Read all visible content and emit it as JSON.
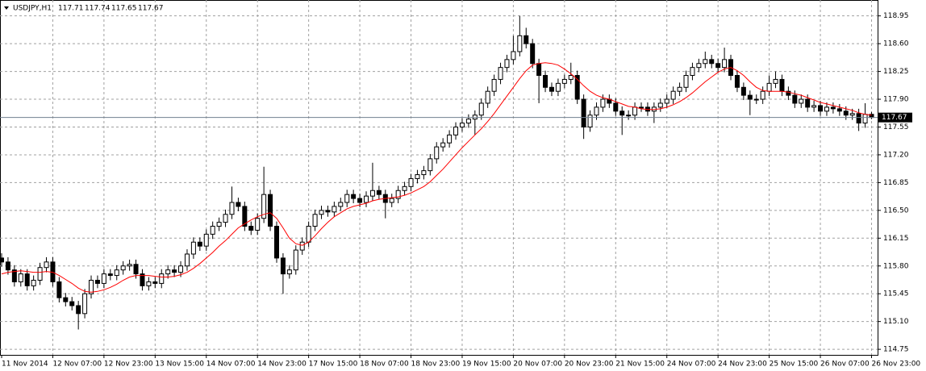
{
  "chart_data": {
    "type": "candlestick",
    "symbol": "USDJPY,H1",
    "categories": [
      "11 Nov 2014",
      null,
      null,
      null,
      null,
      null,
      null,
      null,
      "12 Nov 07:00",
      null,
      null,
      null,
      null,
      null,
      null,
      null,
      "12 Nov 23:00",
      null,
      null,
      null,
      null,
      null,
      null,
      null,
      "13 Nov 15:00",
      null,
      null,
      null,
      null,
      null,
      null,
      null,
      "14 Nov 07:00",
      null,
      null,
      null,
      null,
      null,
      null,
      null,
      "14 Nov 23:00",
      null,
      null,
      null,
      null,
      null,
      null,
      null,
      "17 Nov 15:00",
      null,
      null,
      null,
      null,
      null,
      null,
      null,
      "18 Nov 07:00",
      null,
      null,
      null,
      null,
      null,
      null,
      null,
      "18 Nov 23:00",
      null,
      null,
      null,
      null,
      null,
      null,
      null,
      "19 Nov 15:00",
      null,
      null,
      null,
      null,
      null,
      null,
      null,
      "20 Nov 07:00",
      null,
      null,
      null,
      null,
      null,
      null,
      null,
      "20 Nov 23:00",
      null,
      null,
      null,
      null,
      null,
      null,
      null,
      "21 Nov 15:00",
      null,
      null,
      null,
      null,
      null,
      null,
      null,
      "24 Nov 07:00",
      null,
      null,
      null,
      null,
      null,
      null,
      null,
      "24 Nov 23:00",
      null,
      null,
      null,
      null,
      null,
      null,
      null,
      "25 Nov 15:00",
      null,
      null,
      null,
      null,
      null,
      null,
      null,
      "26 Nov 07:00",
      null,
      null,
      null,
      null,
      null,
      null,
      null,
      "26 Nov 23:00"
    ],
    "open": [
      115.9,
      115.85,
      115.75,
      115.6,
      115.7,
      115.55,
      115.62,
      115.78,
      115.85,
      115.6,
      115.4,
      115.35,
      115.3,
      115.2,
      115.45,
      115.62,
      115.58,
      115.7,
      115.68,
      115.75,
      115.8,
      115.82,
      115.7,
      115.55,
      115.6,
      115.58,
      115.7,
      115.75,
      115.72,
      115.8,
      115.95,
      116.1,
      116.05,
      116.2,
      116.3,
      116.35,
      116.45,
      116.6,
      116.55,
      116.3,
      116.25,
      116.4,
      116.7,
      116.3,
      115.9,
      115.7,
      115.75,
      116.0,
      116.1,
      116.3,
      116.45,
      116.5,
      116.48,
      116.55,
      116.6,
      116.7,
      116.65,
      116.6,
      116.68,
      116.75,
      116.7,
      116.6,
      116.65,
      116.75,
      116.8,
      116.9,
      116.95,
      117.0,
      117.15,
      117.3,
      117.35,
      117.45,
      117.55,
      117.6,
      117.65,
      117.7,
      117.85,
      118.0,
      118.15,
      118.3,
      118.4,
      118.5,
      118.7,
      118.6,
      118.35,
      118.2,
      118.05,
      118.0,
      118.1,
      118.15,
      118.2,
      117.9,
      117.55,
      117.7,
      117.8,
      117.9,
      117.85,
      117.75,
      117.7,
      117.7,
      117.8,
      117.8,
      117.75,
      117.8,
      117.85,
      117.9,
      118.0,
      118.05,
      118.2,
      118.3,
      118.35,
      118.4,
      118.35,
      118.3,
      118.4,
      118.2,
      118.05,
      117.95,
      117.9,
      117.9,
      118.0,
      118.1,
      118.15,
      118.0,
      117.95,
      117.85,
      117.9,
      117.8,
      117.82,
      117.75,
      117.8,
      117.78,
      117.75,
      117.7,
      117.72,
      117.6,
      117.71
    ],
    "high": [
      115.96,
      115.91,
      115.81,
      115.76,
      115.76,
      115.68,
      115.84,
      115.91,
      115.91,
      115.66,
      115.46,
      115.41,
      115.36,
      115.51,
      115.68,
      115.68,
      115.76,
      115.76,
      115.81,
      115.86,
      115.88,
      115.88,
      115.76,
      115.66,
      115.66,
      115.76,
      115.81,
      115.81,
      115.86,
      116.01,
      116.16,
      116.16,
      116.26,
      116.36,
      116.41,
      116.51,
      116.8,
      116.66,
      116.61,
      116.36,
      116.46,
      117.05,
      116.76,
      116.36,
      115.96,
      115.81,
      116.06,
      116.16,
      116.36,
      116.51,
      116.56,
      116.56,
      116.61,
      116.66,
      116.76,
      116.76,
      116.71,
      116.74,
      117.1,
      116.81,
      116.76,
      116.71,
      116.81,
      116.86,
      116.96,
      117.01,
      117.06,
      117.21,
      117.36,
      117.41,
      117.51,
      117.61,
      117.66,
      117.71,
      117.76,
      117.91,
      118.06,
      118.21,
      118.36,
      118.46,
      118.7,
      118.95,
      118.8,
      118.66,
      118.41,
      118.26,
      118.11,
      118.16,
      118.21,
      118.36,
      118.26,
      117.96,
      117.76,
      117.86,
      117.96,
      117.96,
      117.91,
      117.81,
      117.76,
      117.86,
      117.86,
      117.86,
      117.86,
      117.91,
      117.96,
      118.06,
      118.11,
      118.26,
      118.36,
      118.41,
      118.5,
      118.46,
      118.41,
      118.55,
      118.46,
      118.26,
      118.11,
      118.01,
      117.96,
      118.06,
      118.2,
      118.25,
      118.21,
      118.06,
      118.01,
      117.96,
      117.96,
      117.88,
      117.88,
      117.86,
      117.86,
      117.84,
      117.81,
      117.78,
      117.78,
      117.85,
      117.74
    ],
    "low": [
      115.79,
      115.69,
      115.54,
      115.54,
      115.49,
      115.49,
      115.56,
      115.72,
      115.54,
      115.34,
      115.29,
      115.24,
      115.0,
      115.14,
      115.39,
      115.52,
      115.52,
      115.62,
      115.62,
      115.69,
      115.74,
      115.64,
      115.49,
      115.49,
      115.52,
      115.52,
      115.64,
      115.66,
      115.66,
      115.74,
      115.89,
      115.99,
      115.99,
      116.14,
      116.24,
      116.29,
      116.39,
      116.49,
      116.24,
      116.19,
      116.19,
      116.34,
      116.24,
      115.84,
      115.45,
      115.64,
      115.69,
      115.94,
      116.04,
      116.24,
      116.39,
      116.42,
      116.42,
      116.49,
      116.54,
      116.59,
      116.54,
      116.54,
      116.62,
      116.64,
      116.4,
      116.54,
      116.59,
      116.69,
      116.74,
      116.84,
      116.89,
      116.94,
      117.09,
      117.24,
      117.29,
      117.39,
      117.49,
      117.54,
      117.45,
      117.64,
      117.79,
      117.94,
      118.09,
      118.24,
      118.34,
      118.44,
      118.54,
      118.29,
      117.85,
      117.99,
      117.94,
      117.94,
      118.04,
      118.09,
      117.84,
      117.4,
      117.49,
      117.64,
      117.74,
      117.79,
      117.69,
      117.45,
      117.64,
      117.64,
      117.74,
      117.69,
      117.6,
      117.74,
      117.79,
      117.84,
      117.94,
      117.99,
      118.14,
      118.24,
      118.29,
      118.29,
      118.24,
      118.24,
      118.14,
      117.99,
      117.89,
      117.7,
      117.84,
      117.84,
      117.94,
      118.04,
      117.94,
      117.89,
      117.79,
      117.79,
      117.74,
      117.74,
      117.69,
      117.69,
      117.72,
      117.69,
      117.64,
      117.64,
      117.5,
      117.54,
      117.65
    ],
    "close": [
      115.85,
      115.75,
      115.6,
      115.7,
      115.55,
      115.62,
      115.78,
      115.85,
      115.6,
      115.4,
      115.35,
      115.3,
      115.2,
      115.45,
      115.62,
      115.58,
      115.7,
      115.68,
      115.75,
      115.8,
      115.82,
      115.7,
      115.55,
      115.6,
      115.58,
      115.7,
      115.75,
      115.72,
      115.8,
      115.95,
      116.1,
      116.05,
      116.2,
      116.3,
      116.35,
      116.45,
      116.6,
      116.55,
      116.3,
      116.25,
      116.4,
      116.7,
      116.3,
      115.9,
      115.7,
      115.75,
      116.0,
      116.1,
      116.3,
      116.45,
      116.5,
      116.48,
      116.55,
      116.6,
      116.7,
      116.65,
      116.6,
      116.68,
      116.75,
      116.7,
      116.6,
      116.65,
      116.75,
      116.8,
      116.9,
      116.95,
      117.0,
      117.15,
      117.3,
      117.35,
      117.45,
      117.55,
      117.6,
      117.65,
      117.7,
      117.85,
      118.0,
      118.15,
      118.3,
      118.4,
      118.5,
      118.7,
      118.6,
      118.35,
      118.2,
      118.05,
      118.0,
      118.1,
      118.15,
      118.2,
      117.9,
      117.55,
      117.7,
      117.8,
      117.9,
      117.85,
      117.75,
      117.7,
      117.7,
      117.8,
      117.8,
      117.75,
      117.8,
      117.85,
      117.9,
      118.0,
      118.05,
      118.2,
      118.3,
      118.35,
      118.4,
      118.35,
      118.3,
      118.4,
      118.2,
      118.05,
      117.95,
      117.9,
      117.9,
      118.0,
      118.1,
      118.15,
      118.0,
      117.95,
      117.85,
      117.9,
      117.8,
      117.82,
      117.75,
      117.8,
      117.78,
      117.75,
      117.7,
      117.72,
      117.6,
      117.71,
      117.67
    ],
    "color": "#000000",
    "ma": {
      "color": "#ff0000",
      "values": [
        115.7,
        115.72,
        115.73,
        115.74,
        115.73,
        115.72,
        115.72,
        115.73,
        115.72,
        115.68,
        115.63,
        115.58,
        115.52,
        115.48,
        115.47,
        115.48,
        115.5,
        115.53,
        115.57,
        115.62,
        115.66,
        115.68,
        115.68,
        115.68,
        115.67,
        115.66,
        115.66,
        115.67,
        115.69,
        115.72,
        115.77,
        115.83,
        115.9,
        115.97,
        116.05,
        116.12,
        116.2,
        116.28,
        116.33,
        116.38,
        116.42,
        116.45,
        116.47,
        116.4,
        116.28,
        116.15,
        116.08,
        116.06,
        116.1,
        116.18,
        116.27,
        116.35,
        116.42,
        116.47,
        116.52,
        116.55,
        116.57,
        116.59,
        116.62,
        116.64,
        116.65,
        116.66,
        116.67,
        116.69,
        116.72,
        116.76,
        116.8,
        116.86,
        116.94,
        117.02,
        117.11,
        117.2,
        117.29,
        117.37,
        117.45,
        117.53,
        117.62,
        117.72,
        117.83,
        117.94,
        118.05,
        118.16,
        118.26,
        118.33,
        118.35,
        118.36,
        118.35,
        118.33,
        118.28,
        118.22,
        118.15,
        118.07,
        118.0,
        117.95,
        117.92,
        117.9,
        117.87,
        117.84,
        117.81,
        117.8,
        117.78,
        117.77,
        117.77,
        117.78,
        117.8,
        117.83,
        117.87,
        117.92,
        117.98,
        118.05,
        118.12,
        118.18,
        118.24,
        118.28,
        118.3,
        118.26,
        118.2,
        118.12,
        118.05,
        118.01,
        118.0,
        118.0,
        118.0,
        117.99,
        117.97,
        117.95,
        117.92,
        117.89,
        117.86,
        117.84,
        117.82,
        117.8,
        117.78,
        117.76,
        117.73,
        117.71,
        117.7
      ]
    },
    "ylim": [
      114.68,
      119.15
    ],
    "yticks": [
      114.75,
      {
        "value": 115.1,
        "label": "115.10"
      },
      115.45,
      {
        "value": 115.8,
        "label": "115.80"
      },
      116.15,
      {
        "value": 116.5,
        "label": "116.50"
      },
      116.85,
      {
        "value": 117.2,
        "label": "117.20"
      },
      117.55,
      {
        "value": 117.9,
        "label": "117.90"
      },
      118.25,
      {
        "value": 118.6,
        "label": "118.60"
      },
      118.95
    ],
    "grid": true
  }
}
